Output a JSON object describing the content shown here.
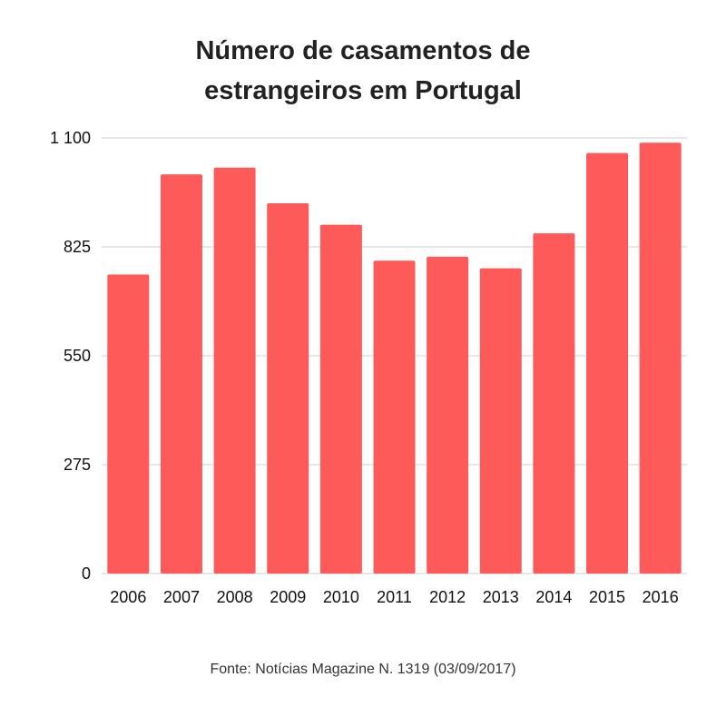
{
  "chart_data": {
    "type": "bar",
    "title_lines": [
      "Número de casamentos de",
      "estrangeiros em Portugal"
    ],
    "categories": [
      "2006",
      "2007",
      "2008",
      "2009",
      "2010",
      "2011",
      "2012",
      "2013",
      "2014",
      "2015",
      "2016"
    ],
    "values": [
      755,
      1008,
      1025,
      935,
      881,
      790,
      800,
      771,
      859,
      1062,
      1088
    ],
    "y_ticks": [
      0,
      275,
      550,
      825,
      1100
    ],
    "y_tick_labels": [
      "0",
      "275",
      "550",
      "825",
      "1 100"
    ],
    "ylim": [
      0,
      1100
    ],
    "grid": true,
    "bar_color": "#ff5a5a",
    "grid_color": "#d0d0d0"
  },
  "source": "Fonte: Notícias Magazine N. 1319 (03/09/2017)"
}
